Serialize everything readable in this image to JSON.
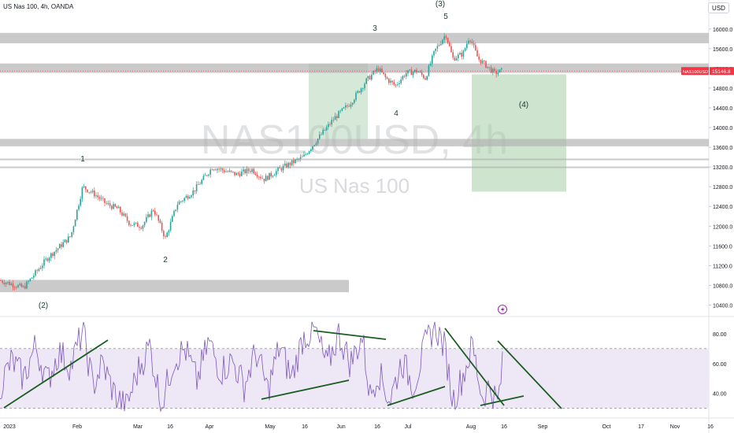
{
  "header": {
    "title": "US Nas 100, 4h, OANDA"
  },
  "currency_button": "USD",
  "watermark": {
    "symbol": "NAS100USD, 4h",
    "name": "US Nas 100"
  },
  "price_tag": {
    "symbol": "NAS100USD",
    "value": "15146.8",
    "color": "#f23645"
  },
  "colors": {
    "up": "#26a69a",
    "down": "#ef5350",
    "zone": "#b4b4b4",
    "target_box": "#a5cda8",
    "rsi": "#7e57c2",
    "rsi_band": "#ede7f6",
    "trendline": "#1b5e20"
  },
  "icons": {
    "lightning": "lightning-icon"
  },
  "chart_data": {
    "type": "candlestick",
    "symbol": "NAS100USD",
    "timeframe": "4h",
    "ylim": [
      10200,
      16300
    ],
    "y_ticks": [
      "16000.0",
      "15600.0",
      "15200.0",
      "14800.0",
      "14400.0",
      "14000.0",
      "13600.0",
      "13200.0",
      "12800.0",
      "12400.0",
      "12000.0",
      "11600.0",
      "11200.0",
      "10800.0",
      "10400.0"
    ],
    "x_ticks": [
      "2023",
      "Feb",
      "Mar",
      "16",
      "Apr",
      "May",
      "16",
      "Jun",
      "16",
      "Jul",
      "Aug",
      "16",
      "Sep",
      "Oct",
      "17",
      "Nov",
      "16"
    ],
    "price_path": [
      {
        "x": 0,
        "y": 10900
      },
      {
        "x": 30,
        "y": 10750
      },
      {
        "x": 60,
        "y": 11350
      },
      {
        "x": 90,
        "y": 11800
      },
      {
        "x": 105,
        "y": 12800
      },
      {
        "x": 120,
        "y": 12650
      },
      {
        "x": 135,
        "y": 12450
      },
      {
        "x": 150,
        "y": 12350
      },
      {
        "x": 165,
        "y": 12050
      },
      {
        "x": 180,
        "y": 12000
      },
      {
        "x": 195,
        "y": 12350
      },
      {
        "x": 210,
        "y": 11750
      },
      {
        "x": 225,
        "y": 12450
      },
      {
        "x": 245,
        "y": 12700
      },
      {
        "x": 270,
        "y": 13200
      },
      {
        "x": 300,
        "y": 13050
      },
      {
        "x": 320,
        "y": 13150
      },
      {
        "x": 335,
        "y": 12950
      },
      {
        "x": 360,
        "y": 13200
      },
      {
        "x": 385,
        "y": 13400
      },
      {
        "x": 405,
        "y": 13800
      },
      {
        "x": 425,
        "y": 14200
      },
      {
        "x": 445,
        "y": 14500
      },
      {
        "x": 465,
        "y": 14950
      },
      {
        "x": 480,
        "y": 15200
      },
      {
        "x": 490,
        "y": 15000
      },
      {
        "x": 502,
        "y": 14850
      },
      {
        "x": 515,
        "y": 15100
      },
      {
        "x": 530,
        "y": 15150
      },
      {
        "x": 540,
        "y": 15000
      },
      {
        "x": 552,
        "y": 15550
      },
      {
        "x": 566,
        "y": 15900
      },
      {
        "x": 575,
        "y": 15400
      },
      {
        "x": 588,
        "y": 15500
      },
      {
        "x": 596,
        "y": 15850
      },
      {
        "x": 607,
        "y": 15400
      },
      {
        "x": 618,
        "y": 15250
      },
      {
        "x": 628,
        "y": 15100
      },
      {
        "x": 637,
        "y": 15150
      }
    ],
    "last_price": 15146.8,
    "zones": [
      {
        "low": 15710,
        "high": 15920
      },
      {
        "low": 15110,
        "high": 15300
      },
      {
        "low": 13620,
        "high": 13770
      },
      {
        "low": 13340,
        "high": 13370
      },
      {
        "low": 13190,
        "high": 13210
      },
      {
        "low": 10660,
        "high": 10910
      }
    ],
    "target_box": {
      "low": 12700,
      "high": 15080
    },
    "wave_labels": [
      "1",
      "2",
      "3",
      "4",
      "5",
      "(2)",
      "(3)",
      "(4)"
    ],
    "rsi": {
      "ylim": [
        25,
        90
      ],
      "y_ticks": [
        "80.00",
        "60.00",
        "40.00"
      ],
      "band": [
        30,
        70
      ],
      "values": [
        {
          "x": 0,
          "y": 45
        },
        {
          "x": 15,
          "y": 62
        },
        {
          "x": 30,
          "y": 50
        },
        {
          "x": 45,
          "y": 72
        },
        {
          "x": 60,
          "y": 48
        },
        {
          "x": 75,
          "y": 68
        },
        {
          "x": 90,
          "y": 58
        },
        {
          "x": 105,
          "y": 82
        },
        {
          "x": 118,
          "y": 45
        },
        {
          "x": 130,
          "y": 60
        },
        {
          "x": 145,
          "y": 40
        },
        {
          "x": 160,
          "y": 30
        },
        {
          "x": 175,
          "y": 55
        },
        {
          "x": 190,
          "y": 72
        },
        {
          "x": 205,
          "y": 32
        },
        {
          "x": 220,
          "y": 62
        },
        {
          "x": 235,
          "y": 70
        },
        {
          "x": 250,
          "y": 48
        },
        {
          "x": 265,
          "y": 75
        },
        {
          "x": 280,
          "y": 55
        },
        {
          "x": 295,
          "y": 62
        },
        {
          "x": 310,
          "y": 45
        },
        {
          "x": 325,
          "y": 68
        },
        {
          "x": 340,
          "y": 42
        },
        {
          "x": 355,
          "y": 72
        },
        {
          "x": 370,
          "y": 50
        },
        {
          "x": 385,
          "y": 78
        },
        {
          "x": 400,
          "y": 82
        },
        {
          "x": 415,
          "y": 58
        },
        {
          "x": 430,
          "y": 80
        },
        {
          "x": 445,
          "y": 60
        },
        {
          "x": 460,
          "y": 78
        },
        {
          "x": 470,
          "y": 38
        },
        {
          "x": 480,
          "y": 55
        },
        {
          "x": 495,
          "y": 35
        },
        {
          "x": 510,
          "y": 62
        },
        {
          "x": 525,
          "y": 45
        },
        {
          "x": 540,
          "y": 72
        },
        {
          "x": 552,
          "y": 86
        },
        {
          "x": 565,
          "y": 70
        },
        {
          "x": 575,
          "y": 35
        },
        {
          "x": 588,
          "y": 52
        },
        {
          "x": 600,
          "y": 72
        },
        {
          "x": 612,
          "y": 38
        },
        {
          "x": 622,
          "y": 45
        },
        {
          "x": 632,
          "y": 33
        },
        {
          "x": 638,
          "y": 58
        }
      ]
    }
  }
}
